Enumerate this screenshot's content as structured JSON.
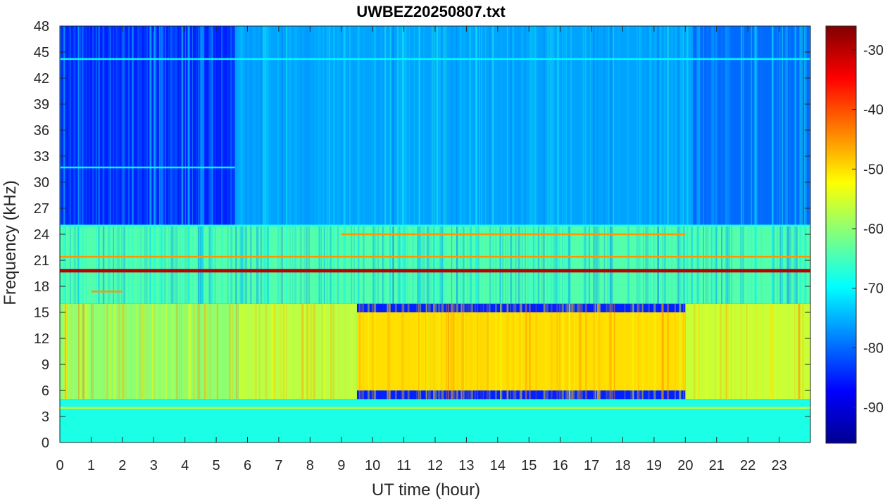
{
  "chart_data": {
    "type": "heatmap",
    "title": "UWBEZ20250807.txt",
    "xlabel": "UT time (hour)",
    "ylabel": "Frequency (kHz)",
    "xlim": [
      0,
      24
    ],
    "ylim": [
      0,
      48
    ],
    "x_ticks": [
      0,
      1,
      2,
      3,
      4,
      5,
      6,
      7,
      8,
      9,
      10,
      11,
      12,
      13,
      14,
      15,
      16,
      17,
      18,
      19,
      20,
      21,
      22,
      23
    ],
    "y_ticks": [
      0,
      3,
      6,
      9,
      12,
      15,
      18,
      21,
      24,
      27,
      30,
      33,
      36,
      39,
      42,
      45,
      48
    ],
    "colorbar": {
      "colormap": "jet",
      "range": [
        -96,
        -26
      ],
      "ticks": [
        -30,
        -40,
        -50,
        -60,
        -70,
        -80,
        -90
      ]
    },
    "grid": false,
    "features": {
      "background_levels": [
        {
          "freq_khz": [
            0,
            5
          ],
          "time_h": [
            0,
            24
          ],
          "level_db": -68
        },
        {
          "freq_khz": [
            5,
            16
          ],
          "time_h": [
            0,
            5.7
          ],
          "level_db": -60
        },
        {
          "freq_khz": [
            5,
            16
          ],
          "time_h": [
            5.7,
            9.5
          ],
          "level_db": -57
        },
        {
          "freq_khz": [
            6,
            15
          ],
          "time_h": [
            9.5,
            20
          ],
          "level_db": -50
        },
        {
          "freq_khz": [
            5,
            16
          ],
          "time_h": [
            20,
            24
          ],
          "level_db": -56
        },
        {
          "freq_khz": [
            16,
            25
          ],
          "time_h": [
            0,
            24
          ],
          "level_db": -64
        },
        {
          "freq_khz": [
            25,
            48
          ],
          "time_h": [
            0,
            5.6
          ],
          "level_db": -85
        },
        {
          "freq_khz": [
            25,
            48
          ],
          "time_h": [
            5.6,
            20.2
          ],
          "level_db": -76
        },
        {
          "freq_khz": [
            25,
            48
          ],
          "time_h": [
            20.2,
            24
          ],
          "level_db": -80
        }
      ],
      "narrowband_lines": [
        {
          "freq_khz": 19.8,
          "time_h": [
            0,
            24
          ],
          "level_db": -30
        },
        {
          "freq_khz": 21.4,
          "time_h": [
            0,
            24
          ],
          "level_db": -45
        },
        {
          "freq_khz": 24.0,
          "time_h": [
            9,
            20
          ],
          "level_db": -45
        },
        {
          "freq_khz": 17.4,
          "time_h": [
            1,
            2
          ],
          "level_db": -45
        },
        {
          "freq_khz": 44.2,
          "time_h": [
            0,
            24
          ],
          "level_db": -70
        },
        {
          "freq_khz": 31.7,
          "time_h": [
            0,
            5.6
          ],
          "level_db": -70
        },
        {
          "freq_khz": 4.0,
          "time_h": [
            0,
            24
          ],
          "level_db": -55
        },
        {
          "freq_khz": 25.0,
          "time_h": [
            0,
            24
          ],
          "level_db": -68
        }
      ]
    }
  }
}
